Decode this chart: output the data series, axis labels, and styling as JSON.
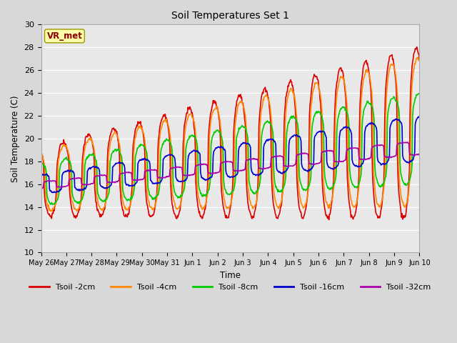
{
  "title": "Soil Temperatures Set 1",
  "xlabel": "Time",
  "ylabel": "Soil Temperature (C)",
  "ylim": [
    10,
    30
  ],
  "yticks": [
    10,
    12,
    14,
    16,
    18,
    20,
    22,
    24,
    26,
    28,
    30
  ],
  "xtick_labels": [
    "May 26",
    "May 27",
    "May 28",
    "May 29",
    "May 30",
    "May 31",
    "Jun 1",
    "Jun 2",
    "Jun 3",
    "Jun 4",
    "Jun 5",
    "Jun 6",
    "Jun 7",
    "Jun 8",
    "Jun 9",
    "Jun 10"
  ],
  "xtick_positions": [
    0,
    1,
    2,
    3,
    4,
    5,
    6,
    7,
    8,
    9,
    10,
    11,
    12,
    13,
    14,
    15
  ],
  "series": {
    "Tsoil -2cm": {
      "color": "#dd0000",
      "lw": 1.2
    },
    "Tsoil -4cm": {
      "color": "#ff8800",
      "lw": 1.2
    },
    "Tsoil -8cm": {
      "color": "#00cc00",
      "lw": 1.2
    },
    "Tsoil -16cm": {
      "color": "#0000cc",
      "lw": 1.2
    },
    "Tsoil -32cm": {
      "color": "#aa00aa",
      "lw": 1.2
    }
  },
  "background_color": "#d8d8d8",
  "plot_background": "#e8e8e8",
  "annotation_text": "VR_met",
  "annotation_bg": "#ffffaa",
  "annotation_border": "#999900"
}
